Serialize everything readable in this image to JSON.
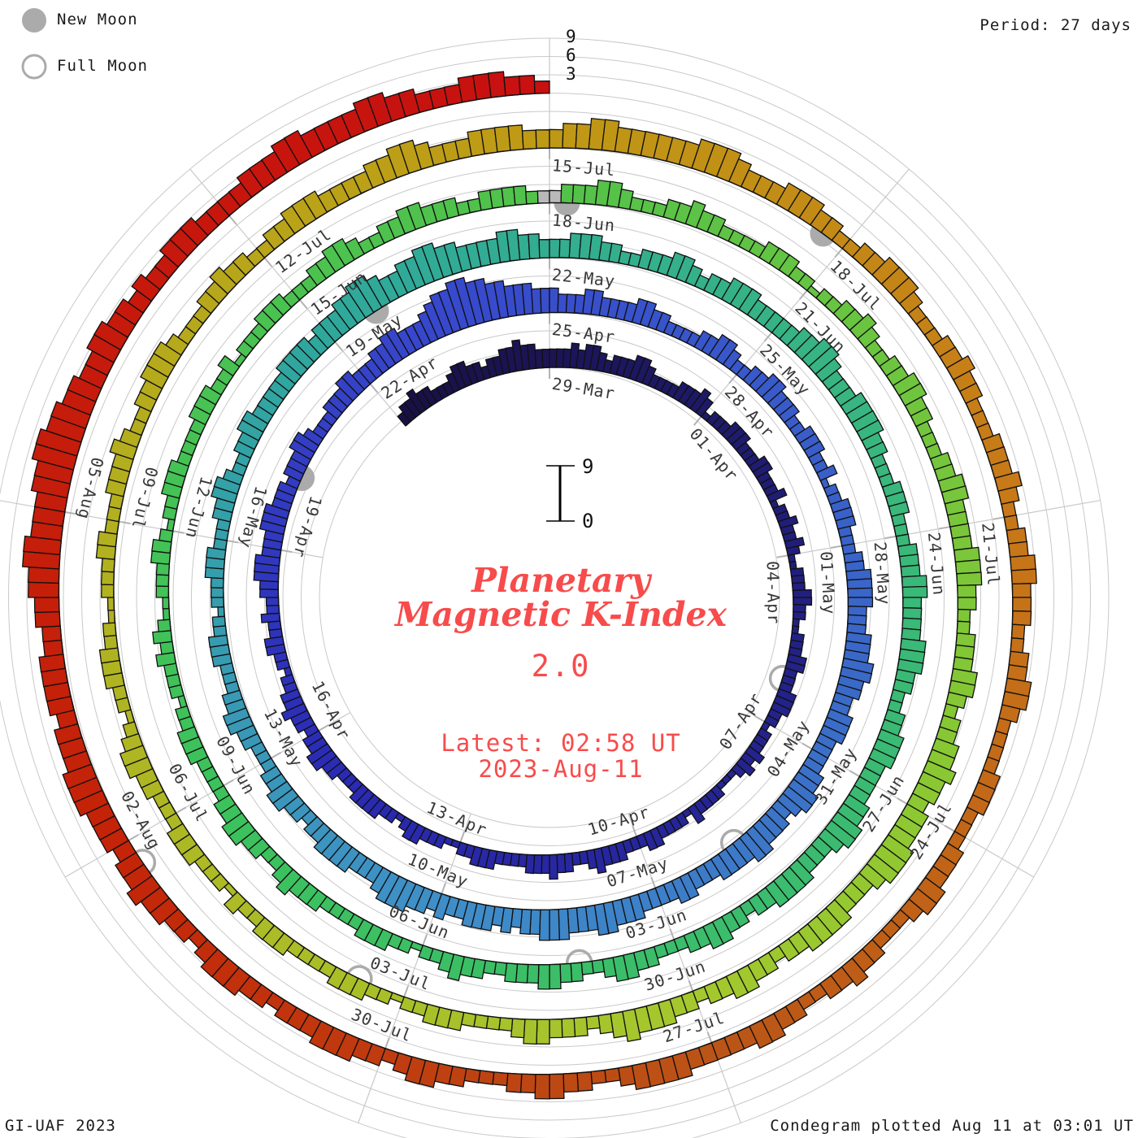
{
  "legend": {
    "new_moon": "New Moon",
    "full_moon": "Full Moon"
  },
  "header": {
    "period": "Period: 27 days"
  },
  "footer": {
    "credit": "GI-UAF 2023",
    "plotted": "Condegram plotted Aug 11 at 03:01 UT"
  },
  "center": {
    "title_line1": "Planetary",
    "title_line2": "Magnetic K-Index",
    "current_value": "2.0",
    "latest_line1": "Latest: 02:58 UT",
    "latest_line2": "2023-Aug-11"
  },
  "scale": {
    "k3": "3",
    "k6": "6",
    "k9": "9",
    "bar_top": "9",
    "bar_bottom": "0"
  },
  "colors": {
    "bar_outline": "#111111",
    "grid": "#c9c9c9",
    "tick": "#b3b3b3",
    "moon": "#ababab",
    "label_text": "#383838",
    "accent_red": "#f84b4b",
    "gap_fill": "#b9b9b9"
  },
  "chart_data": {
    "type": "spiral_bar",
    "title": "Planetary Magnetic K-Index condegram",
    "period_days": 27,
    "samples_per_day": 8,
    "k_range": [
      0,
      9
    ],
    "series_start": "2023-03-26 00:00 UT",
    "anchor_label_date": "29-Mar",
    "latest": "2023-08-11 02:58 UT",
    "kp_3hr": "233433222344332334454433333434432333443222233343122233322233222312232232112223322112223322233322122232321112222312222332223334322334333222233322112223321223333222334433233433221223322322334443334443332333443222333443334455444567788776655544433344333344332222334432233443332233322312233322233444433344455443344433334455434445544443334433334445544455544343444334344555433344443323344332223344332223332212223332223344322334433333444434445566544556655444455443334443322333443233444333334455433344443322233322233344333344433223344433334455433344443323344332223344322334433322334322122333222233343223344332222333221222323211222332122333222233322312223332223344322334433322333322233344322233433222233322122334322334433222334433334443322333443233445443444555433344443323344332334445432333443222233322122333222233322312223332223344321223332211222332223334322334443222334332233444333344554333444433344554444445554333444332233444322233433222333432233443332233443222233322233344322233433223344333334444322334433222334432334443332334443233445443444555444344443344556655566776655445544343344433334445544445544333444332",
    "data_gap_indices": [
      671,
      672
    ],
    "date_labels": [
      {
        "d": 0,
        "label": "29-Mar"
      },
      {
        "d": 3,
        "label": "01-Apr"
      },
      {
        "d": 6,
        "label": "04-Apr"
      },
      {
        "d": 9,
        "label": "07-Apr"
      },
      {
        "d": 12,
        "label": "10-Apr"
      },
      {
        "d": 15,
        "label": "13-Apr"
      },
      {
        "d": 18,
        "label": "16-Apr"
      },
      {
        "d": 21,
        "label": "19-Apr"
      },
      {
        "d": 24,
        "label": "22-Apr"
      },
      {
        "d": 27,
        "label": "25-Apr"
      },
      {
        "d": 30,
        "label": "28-Apr"
      },
      {
        "d": 33,
        "label": "01-May"
      },
      {
        "d": 36,
        "label": "04-May"
      },
      {
        "d": 39,
        "label": "07-May"
      },
      {
        "d": 42,
        "label": "10-May"
      },
      {
        "d": 45,
        "label": "13-May"
      },
      {
        "d": 48,
        "label": "16-May"
      },
      {
        "d": 51,
        "label": "19-May"
      },
      {
        "d": 54,
        "label": "22-May"
      },
      {
        "d": 57,
        "label": "25-May"
      },
      {
        "d": 60,
        "label": "28-May"
      },
      {
        "d": 63,
        "label": "31-May"
      },
      {
        "d": 66,
        "label": "03-Jun"
      },
      {
        "d": 69,
        "label": "06-Jun"
      },
      {
        "d": 72,
        "label": "09-Jun"
      },
      {
        "d": 75,
        "label": "12-Jun"
      },
      {
        "d": 78,
        "label": "15-Jun"
      },
      {
        "d": 81,
        "label": "18-Jun"
      },
      {
        "d": 84,
        "label": "21-Jun"
      },
      {
        "d": 87,
        "label": "24-Jun"
      },
      {
        "d": 90,
        "label": "27-Jun"
      },
      {
        "d": 93,
        "label": "30-Jun"
      },
      {
        "d": 96,
        "label": "03-Jul"
      },
      {
        "d": 99,
        "label": "06-Jul"
      },
      {
        "d": 102,
        "label": "09-Jul"
      },
      {
        "d": 105,
        "label": "12-Jul"
      },
      {
        "d": 108,
        "label": "15-Jul"
      },
      {
        "d": 111,
        "label": "18-Jul"
      },
      {
        "d": 114,
        "label": "21-Jul"
      },
      {
        "d": 117,
        "label": "24-Jul"
      },
      {
        "d": 120,
        "label": "27-Jul"
      },
      {
        "d": 123,
        "label": "30-Jul"
      },
      {
        "d": 126,
        "label": "02-Aug"
      },
      {
        "d": 129,
        "label": "05-Aug"
      }
    ],
    "moons": {
      "full_d": [
        8.19,
        37.73,
        67.15,
        96.49,
        125.77
      ],
      "new_d": [
        22.18,
        51.66,
        81.19,
        110.77
      ]
    },
    "colormap": [
      [
        0.0,
        "#181044"
      ],
      [
        0.08,
        "#232288"
      ],
      [
        0.145,
        "#2a2ab4"
      ],
      [
        0.203,
        "#3747cc"
      ],
      [
        0.275,
        "#3a6ac8"
      ],
      [
        0.326,
        "#3f8fc8"
      ],
      [
        0.391,
        "#2fa89c"
      ],
      [
        0.456,
        "#3ab87a"
      ],
      [
        0.543,
        "#3cc25c"
      ],
      [
        0.608,
        "#52c24a"
      ],
      [
        0.673,
        "#8cc832"
      ],
      [
        0.695,
        "#a4c82e"
      ],
      [
        0.76,
        "#b2b01f"
      ],
      [
        0.803,
        "#bf9a15"
      ],
      [
        0.847,
        "#c87818"
      ],
      [
        0.89,
        "#bb5517"
      ],
      [
        0.934,
        "#c42408"
      ],
      [
        1.0,
        "#c81010"
      ]
    ]
  }
}
